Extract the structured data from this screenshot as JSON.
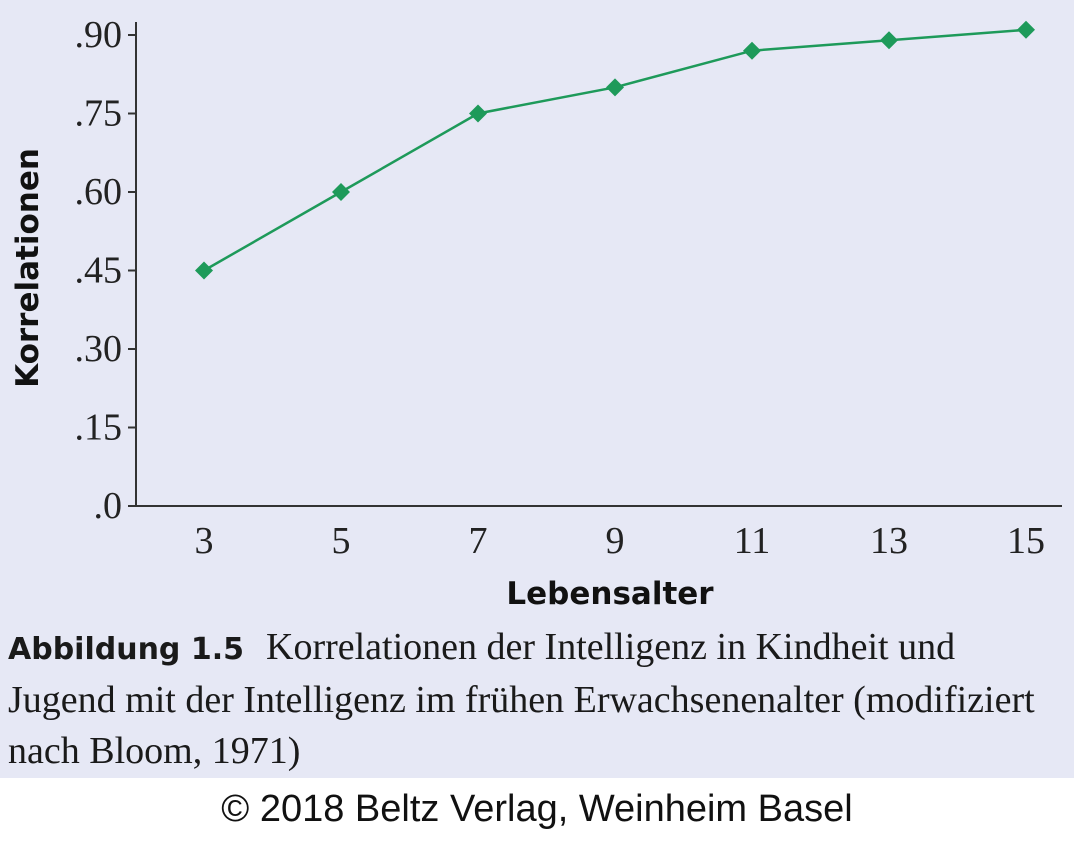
{
  "chart_data": {
    "type": "line",
    "x": [
      3,
      5,
      7,
      9,
      11,
      13,
      15
    ],
    "series": [
      {
        "values": [
          0.45,
          0.6,
          0.75,
          0.8,
          0.87,
          0.89,
          0.91
        ]
      }
    ],
    "y_ticks": [
      ".0",
      ".15",
      ".30",
      ".45",
      ".60",
      ".75",
      ".90"
    ],
    "y_tick_values": [
      0,
      0.15,
      0.3,
      0.45,
      0.6,
      0.75,
      0.9
    ],
    "x_ticks": [
      "3",
      "5",
      "7",
      "9",
      "11",
      "13",
      "15"
    ],
    "xlabel": "Lebensalter",
    "ylabel": "Korrelationen",
    "ylim": [
      0,
      0.9
    ],
    "grid": false,
    "line_color": "#1e9a5a",
    "marker": "diamond"
  },
  "caption": {
    "label": "Abbildung 1.5",
    "text": "Korrelationen der Intelligenz in Kindheit und Jugend mit der Intelligenz im frühen Erwachsenenalter (modifiziert nach Bloom, 1971)"
  },
  "copyright": "© 2018 Beltz Verlag, Weinheim Basel",
  "colors": {
    "panel_background": "#e6e8f5",
    "axis": "#333333"
  }
}
